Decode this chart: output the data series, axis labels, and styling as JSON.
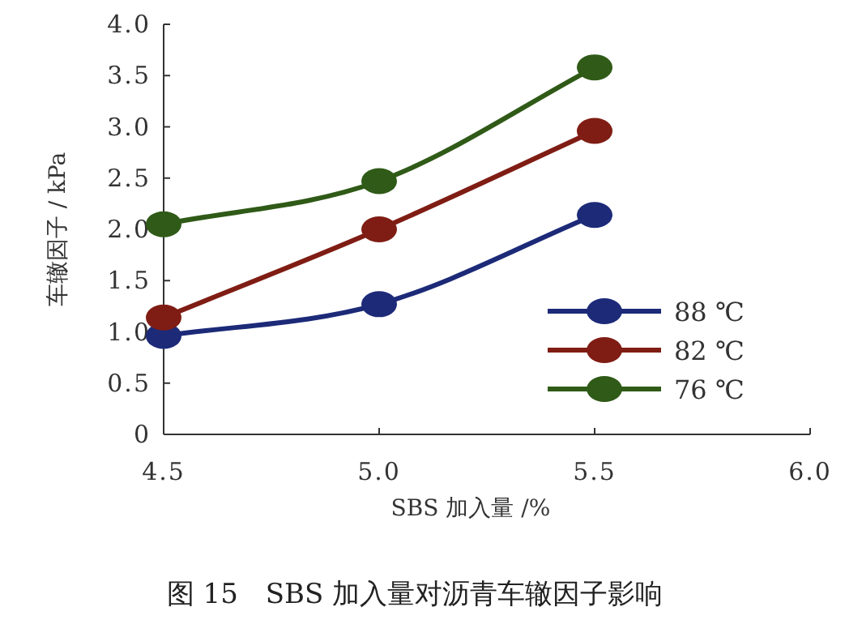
{
  "chart_data": {
    "type": "line",
    "title": "图 15　SBS 加入量对沥青车辙因子影响",
    "xlabel": "SBS 加入量 /%",
    "ylabel": "车辙因子 / kPa",
    "x": [
      4.5,
      5.0,
      5.5
    ],
    "series": [
      {
        "name": "88 ℃",
        "color": "#1c2a78",
        "values": [
          0.96,
          1.27,
          2.14
        ]
      },
      {
        "name": "82 ℃",
        "color": "#7f1d14",
        "values": [
          1.14,
          2.0,
          2.96
        ]
      },
      {
        "name": "76 ℃",
        "color": "#2f5a17",
        "values": [
          2.05,
          2.47,
          3.58
        ]
      }
    ],
    "xlim": [
      4.5,
      6.0
    ],
    "xticks": [
      {
        "value": 4.5,
        "label": "4.5"
      },
      {
        "value": 5,
        "label": "5.0"
      },
      {
        "value": 5.5,
        "label": "5.5"
      },
      {
        "value": 6,
        "label": "6.0"
      }
    ],
    "ylim": [
      0,
      4
    ],
    "yticks": [
      0,
      0.5,
      {
        "value": 1,
        "label": "1.0"
      },
      1.5,
      {
        "value": 2,
        "label": "2.0"
      },
      2.5,
      {
        "value": 3,
        "label": "3.0"
      },
      3.5,
      {
        "value": 4,
        "label": "4.0"
      }
    ],
    "grid": false,
    "legend": "bottom right",
    "marker": "circle",
    "line_style": "solid"
  }
}
